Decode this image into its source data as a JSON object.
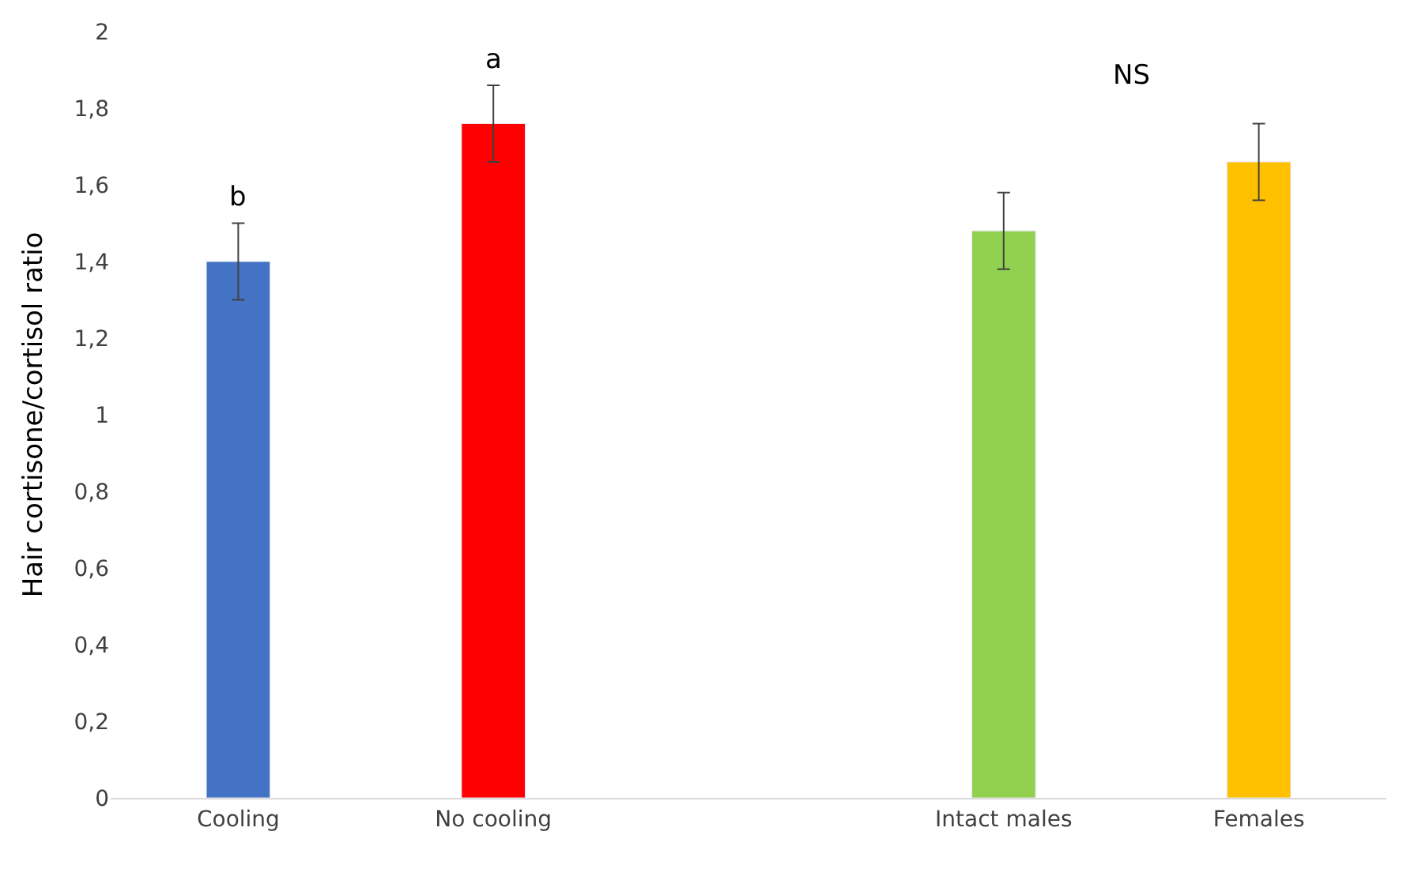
{
  "chart_data": {
    "type": "bar",
    "ylabel": "Hair cortisone/cortisol ratio",
    "categories": [
      "Cooling",
      "No cooling",
      null,
      "Intact males",
      "Females"
    ],
    "values": [
      1.4,
      1.76,
      null,
      1.48,
      1.66
    ],
    "colors": [
      "#4472c4",
      "#ff0000",
      null,
      "#92d050",
      "#ffc000"
    ],
    "errors": [
      0.1,
      0.1,
      null,
      0.1,
      0.1
    ],
    "ylim": [
      0,
      2
    ],
    "yticks": [
      0,
      {
        "value": 0.2,
        "label": "0,2"
      },
      {
        "value": 0.4,
        "label": "0,4"
      },
      {
        "value": 0.6,
        "label": "0,6"
      },
      {
        "value": 0.8,
        "label": "0,8"
      },
      1,
      {
        "value": 1.2,
        "label": "1,2"
      },
      {
        "value": 1.4,
        "label": "1,4"
      },
      {
        "value": 1.6,
        "label": "1,6"
      },
      {
        "value": 1.8,
        "label": "1,8"
      },
      2
    ],
    "annotations": [
      "b",
      "a",
      "NS"
    ],
    "legend": false
  }
}
